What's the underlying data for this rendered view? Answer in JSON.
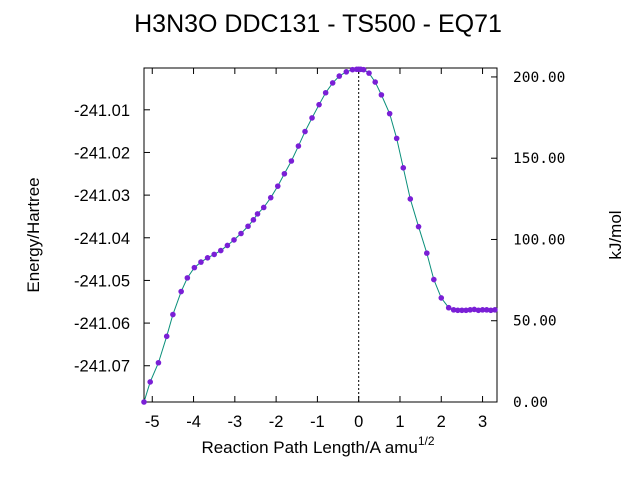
{
  "chart_data": {
    "type": "line",
    "title": "H3N3O   DDC131 - TS500 - EQ71",
    "xlabel": "Reaction Path Length/A amu",
    "xlabel_superscript": "1/2",
    "ylabel": "Energy/Hartree",
    "y2label": "kJ/mol",
    "xlim": [
      -5.2,
      3.35
    ],
    "ylim": [
      -241.0785,
      -241.0002
    ],
    "y2lim": [
      0,
      205.5
    ],
    "x_ticks": [
      -5,
      -4,
      -3,
      -2,
      -1,
      0,
      1,
      2,
      3
    ],
    "x_tick_labels": [
      "-5",
      "-4",
      "-3",
      "-2",
      "-1",
      "0",
      "1",
      "2",
      "3"
    ],
    "y_ticks": [
      -241.01,
      -241.02,
      -241.03,
      -241.04,
      -241.05,
      -241.06,
      -241.07
    ],
    "y_tick_labels": [
      "-241.01",
      "-241.02",
      "-241.03",
      "-241.04",
      "-241.05",
      "-241.06",
      "-241.07"
    ],
    "y2_ticks": [
      0,
      50,
      100,
      150,
      200
    ],
    "y2_tick_labels": [
      "0.00",
      "50.00",
      "100.00",
      "150.00",
      "200.00"
    ],
    "vertical_line_x": 0,
    "grid": false,
    "line_color": "#0a8f7a",
    "marker_color": "#7a1fd6",
    "series": [
      {
        "x": [
          -5.2,
          -5.05,
          -4.85,
          -4.65,
          -4.5,
          -4.3,
          -4.15,
          -3.98,
          -3.82,
          -3.66,
          -3.5,
          -3.34,
          -3.18,
          -3.02,
          -2.85,
          -2.68,
          -2.55,
          -2.45,
          -2.3,
          -2.13,
          -1.96,
          -1.8,
          -1.63,
          -1.46,
          -1.3,
          -1.13,
          -0.96,
          -0.8,
          -0.63,
          -0.47,
          -0.3,
          -0.15,
          -0.05,
          0.0,
          0.05,
          0.12,
          0.25,
          0.4,
          0.55,
          0.75,
          0.92,
          1.08,
          1.25,
          1.45,
          1.65,
          1.82,
          2.0,
          2.18,
          2.3,
          2.4,
          2.5,
          2.6,
          2.7,
          2.8,
          2.9,
          3.0,
          3.1,
          3.2,
          3.3
        ],
        "y": [
          -241.0785,
          -241.0738,
          -241.0693,
          -241.0631,
          -241.058,
          -241.0526,
          -241.0494,
          -241.047,
          -241.0457,
          -241.0447,
          -241.0439,
          -241.043,
          -241.0418,
          -241.0405,
          -241.039,
          -241.0373,
          -241.0358,
          -241.0344,
          -241.0329,
          -241.0306,
          -241.0279,
          -241.025,
          -241.022,
          -241.0185,
          -241.0151,
          -241.0119,
          -241.0088,
          -241.006,
          -241.0037,
          -241.0021,
          -241.0011,
          -241.0006,
          -241.0005,
          -241.0005,
          -241.0005,
          -241.0006,
          -241.0014,
          -241.0035,
          -241.0065,
          -241.0109,
          -241.0167,
          -241.0236,
          -241.0309,
          -241.0374,
          -241.0436,
          -241.0498,
          -241.0541,
          -241.0564,
          -241.0569,
          -241.057,
          -241.057,
          -241.057,
          -241.0569,
          -241.0568,
          -241.057,
          -241.0569,
          -241.0569,
          -241.057,
          -241.0569
        ]
      }
    ]
  }
}
